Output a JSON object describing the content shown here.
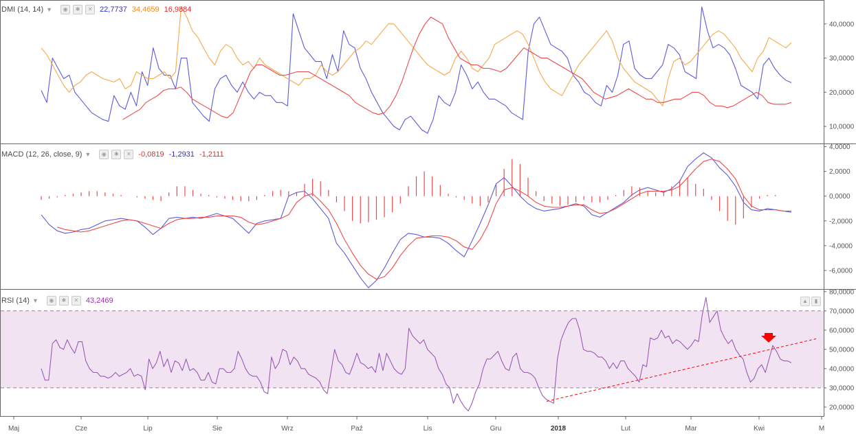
{
  "colors": {
    "blue": "#5b5bdc",
    "orange": "#f6a84a",
    "red": "#ef4848",
    "purple": "#9a5ab8",
    "rsi_band": "#f1e3f1",
    "grid": "#d8d8d8",
    "arrow": "#ff0000"
  },
  "x_axis": {
    "months": [
      "Maj",
      "Cze",
      "Lip",
      "Sie",
      "Wrz",
      "Paź",
      "Lis",
      "Gru",
      "2018",
      "Lut",
      "Mar",
      "Kwi",
      "M"
    ]
  },
  "panes": {
    "dmi": {
      "title": "DMI (14, 14)",
      "values": {
        "plus": "22,7737",
        "minus": "34,4659",
        "adx": "16,9884"
      },
      "y_ticks": [
        "40,0000",
        "30,0000",
        "20,0000",
        "10,0000"
      ]
    },
    "macd": {
      "title": "MACD (12, 26, close, 9)",
      "values": {
        "hist": "-0,0819",
        "macd": "-1,2931",
        "signal": "-1,2111"
      },
      "y_ticks": [
        "4,0000",
        "2,0000",
        "0,0000",
        "-2,0000",
        "-4,0000",
        "-6,0000"
      ]
    },
    "rsi": {
      "title": "RSI (14)",
      "values": {
        "rsi": "43,2469"
      },
      "y_ticks": [
        "80,0000",
        "70,0000",
        "60,0000",
        "50,0000",
        "40,0000",
        "30,0000",
        "20,0000"
      ]
    }
  },
  "chart_data": [
    {
      "type": "line",
      "pane": "DMI",
      "title": "DMI (14, 14)",
      "ylim": [
        5,
        47
      ],
      "series": [
        {
          "color": "blue",
          "values": [
            20.5,
            17,
            30,
            27,
            24,
            25,
            20,
            18,
            16,
            14,
            13,
            12,
            11.5,
            19,
            16,
            15,
            20,
            16,
            26,
            22,
            33,
            27,
            25,
            25,
            21,
            30,
            30,
            17,
            15,
            13,
            11.5,
            21,
            24,
            25,
            22,
            20,
            23,
            20,
            18,
            20,
            19,
            19,
            17,
            17,
            16,
            43,
            38,
            33,
            31,
            29,
            29,
            24,
            31,
            26,
            38,
            34,
            33,
            27,
            24,
            20,
            17,
            14,
            12,
            10,
            9,
            12,
            13,
            11,
            9,
            8,
            12,
            19,
            17,
            16,
            20,
            28,
            25,
            21,
            23,
            20,
            18,
            18,
            17,
            16,
            14,
            13,
            12,
            32,
            40,
            42,
            38,
            34,
            33,
            32,
            30,
            25,
            23,
            20,
            19,
            17,
            16,
            22,
            20,
            25,
            34,
            35,
            27,
            25,
            24,
            24,
            26,
            28,
            34,
            33,
            31,
            26,
            25,
            24,
            45,
            38,
            33,
            34,
            33,
            31,
            27,
            22,
            21,
            20,
            18,
            28,
            30,
            27,
            25,
            23.5,
            22.8
          ]
        },
        {
          "color": "orange",
          "values": [
            33,
            31,
            28,
            25,
            22,
            20,
            22,
            23,
            25,
            26,
            25,
            24,
            23.5,
            23,
            24,
            21,
            22,
            26,
            25,
            24,
            24,
            25,
            26,
            24,
            26,
            45,
            42,
            38,
            36,
            33,
            30,
            28,
            32,
            34,
            33,
            30,
            28,
            29,
            27,
            30,
            28,
            27,
            26,
            25,
            24,
            23,
            22,
            24,
            24,
            25,
            28,
            26,
            25,
            26,
            28,
            30,
            32,
            33,
            35,
            34,
            36,
            38,
            40,
            40,
            38,
            36,
            34,
            32,
            30,
            28,
            27,
            26,
            25,
            26,
            30,
            32,
            30,
            27,
            26,
            28,
            30,
            34,
            35,
            36,
            37,
            38,
            37,
            34,
            30,
            26,
            23,
            21,
            20,
            19,
            22,
            25,
            28,
            30,
            32,
            34,
            36,
            38,
            35,
            30,
            27,
            25,
            23,
            22,
            21,
            20,
            18,
            16,
            24,
            29,
            30,
            28,
            29,
            31,
            33,
            35,
            37,
            38,
            37,
            35,
            33,
            30,
            28,
            26,
            30,
            32,
            36,
            35,
            34,
            33,
            34.5
          ]
        },
        {
          "color": "red",
          "values": [
            null,
            null,
            null,
            null,
            null,
            null,
            null,
            null,
            null,
            null,
            null,
            null,
            null,
            null,
            12,
            13,
            14,
            15,
            17,
            18,
            19,
            20.5,
            21,
            21,
            21.5,
            20,
            18,
            17,
            16,
            15,
            14,
            13,
            12.5,
            14,
            18,
            22,
            26,
            28,
            28,
            27,
            26,
            25,
            25,
            25.5,
            26,
            26,
            26,
            25,
            24,
            23,
            22,
            21,
            20,
            19,
            17,
            16,
            15,
            14,
            13.5,
            14,
            16,
            19,
            23,
            28,
            33,
            37,
            40,
            42,
            41,
            40,
            36,
            33,
            30,
            29,
            28,
            28,
            27,
            27,
            26.5,
            26,
            27,
            29,
            31,
            33,
            32,
            31,
            30,
            30,
            29,
            28,
            27,
            26,
            25,
            24,
            22,
            20,
            19,
            18,
            18.5,
            19,
            20,
            21,
            20,
            19,
            18,
            18,
            17,
            17,
            17.5,
            18,
            18,
            19,
            20,
            20,
            19,
            17,
            16,
            16,
            15.5,
            16,
            17,
            18,
            19,
            20,
            19,
            17,
            16.5,
            16.5,
            16.5,
            17
          ]
        }
      ]
    },
    {
      "type": "line",
      "pane": "MACD",
      "title": "MACD (12, 26, close, 9)",
      "ylim": [
        -7.5,
        4.2
      ],
      "series": [
        {
          "color": "blue",
          "values": [
            -1.5,
            -2.3,
            -2.8,
            -3.0,
            -2.9,
            -2.7,
            -2.6,
            -2.3,
            -2.0,
            -1.9,
            -1.8,
            -1.9,
            -2.0,
            -2.5,
            -3.1,
            -2.6,
            -1.8,
            -1.7,
            -1.8,
            -1.7,
            -1.8,
            -1.6,
            -1.4,
            -1.6,
            -1.8,
            -2.4,
            -3.0,
            -2.2,
            -2.0,
            -1.9,
            -1.8,
            0.0,
            0.3,
            0.4,
            -0.2,
            -1.0,
            -1.8,
            -3.8,
            -4.6,
            -5.6,
            -6.6,
            -7.4,
            -6.8,
            -5.8,
            -4.6,
            -3.5,
            -3.0,
            -3.1,
            -3.3,
            -3.3,
            -3.4,
            -3.8,
            -4.4,
            -4.9,
            -3.6,
            -2.2,
            -0.7,
            1.0,
            1.5,
            0.8,
            0.0,
            -0.6,
            -1.0,
            -1.2,
            -1.1,
            -1.0,
            -0.8,
            -0.6,
            -0.8,
            -1.5,
            -1.7,
            -1.3,
            -0.9,
            -0.5,
            0.1,
            0.5,
            0.7,
            0.5,
            0.3,
            0.6,
            1.2,
            2.4,
            3.0,
            3.5,
            3.1,
            2.3,
            1.7,
            0.8,
            -0.5,
            -1.1,
            -1.2,
            -1.0,
            -1.1,
            -1.2,
            -1.3
          ]
        },
        {
          "color": "red",
          "values": [
            null,
            null,
            -2.5,
            -2.7,
            -2.8,
            -2.9,
            -2.8,
            -2.6,
            -2.4,
            -2.2,
            -2.0,
            -1.9,
            -2.0,
            -2.2,
            -2.4,
            -2.6,
            -2.2,
            -1.9,
            -1.8,
            -1.8,
            -1.7,
            -1.7,
            -1.6,
            -1.6,
            -1.6,
            -1.7,
            -2.1,
            -2.3,
            -2.2,
            -2.0,
            -1.8,
            -1.5,
            -0.5,
            0.0,
            0.2,
            -0.4,
            -1.1,
            -2.2,
            -3.5,
            -4.6,
            -5.6,
            -6.3,
            -6.7,
            -6.5,
            -5.8,
            -4.8,
            -4.0,
            -3.4,
            -3.3,
            -3.2,
            -3.2,
            -3.3,
            -3.6,
            -4.1,
            -4.3,
            -3.5,
            -2.3,
            -0.6,
            0.5,
            0.7,
            0.4,
            0.0,
            -0.5,
            -0.8,
            -0.9,
            -0.9,
            -0.8,
            -0.7,
            -0.7,
            -1.1,
            -1.4,
            -1.3,
            -1.0,
            -0.6,
            -0.2,
            0.2,
            0.4,
            0.4,
            0.4,
            0.5,
            0.8,
            1.5,
            2.2,
            2.8,
            3.0,
            2.8,
            2.2,
            1.4,
            0.0,
            -0.8,
            -1.1,
            -1.1,
            -1.1,
            -1.2,
            -1.2
          ]
        },
        {
          "color": "red",
          "style": "histogram",
          "values": [
            -0.3,
            -0.2,
            -0.1,
            0.1,
            0.2,
            0.3,
            0.4,
            0.4,
            0.3,
            0.2,
            0.1,
            0.0,
            -0.1,
            -0.2,
            -0.3,
            -0.4,
            0.3,
            0.8,
            0.8,
            0.5,
            0.2,
            0.1,
            -0.1,
            -0.2,
            -0.3,
            -0.4,
            -0.4,
            -0.3,
            0.1,
            0.4,
            0.5,
            0.4,
            0.3,
            1.0,
            1.4,
            1.2,
            0.5,
            -0.5,
            -1.2,
            -2.0,
            -2.2,
            -2.1,
            -1.9,
            -1.7,
            -1.3,
            -0.6,
            0.8,
            1.6,
            2.0,
            1.6,
            0.9,
            0.2,
            -0.1,
            -0.3,
            -0.6,
            -0.8,
            -0.5,
            1.0,
            2.2,
            3.0,
            2.6,
            1.5,
            0.4,
            -0.4,
            -0.6,
            -0.8,
            -0.7,
            -0.5,
            -0.3,
            -0.5,
            -0.5,
            -0.3,
            0.1,
            0.5,
            0.8,
            0.7,
            0.4,
            0.3,
            0.4,
            0.8,
            1.3,
            1.5,
            1.0,
            0.6,
            -0.3,
            -1.2,
            -2.0,
            -2.3,
            -1.8,
            -0.9,
            -0.2,
            0.1,
            0.1,
            0.0,
            0.0
          ]
        }
      ]
    },
    {
      "type": "line",
      "pane": "RSI",
      "title": "RSI (14)",
      "ylim": [
        15,
        81
      ],
      "band": [
        30,
        70
      ],
      "series": [
        {
          "color": "purple",
          "values": [
            40,
            34,
            34,
            53,
            55,
            51,
            50,
            55,
            51,
            48,
            54,
            54,
            44,
            40,
            38,
            38,
            36,
            36,
            35,
            36,
            38,
            36,
            37,
            38,
            40,
            36,
            37,
            36,
            29,
            45,
            40,
            43,
            49,
            41,
            45,
            38,
            44,
            43,
            39,
            45,
            39,
            40,
            38,
            34,
            34,
            38,
            33,
            32,
            40,
            40,
            38,
            38,
            40,
            49,
            45,
            40,
            37,
            36,
            36,
            33,
            28,
            27,
            46,
            40,
            43,
            50,
            49,
            42,
            46,
            44,
            40,
            40,
            37,
            36,
            35,
            33,
            29,
            27,
            38,
            50,
            44,
            42,
            38,
            37,
            42,
            48,
            43,
            42,
            40,
            41,
            38,
            48,
            39,
            48,
            44,
            40,
            38,
            37,
            40,
            61,
            57,
            55,
            53,
            55,
            50,
            48,
            46,
            40,
            37,
            32,
            30,
            22,
            27,
            23,
            20,
            18,
            22,
            28,
            32,
            40,
            45,
            45,
            47,
            49,
            44,
            40,
            39,
            46,
            48,
            40,
            38,
            38,
            37,
            35,
            30,
            26,
            24,
            23,
            22,
            45,
            55,
            60,
            64,
            66,
            66,
            60,
            50,
            49,
            49,
            48,
            46,
            46,
            44,
            40,
            43,
            40,
            44,
            44,
            40,
            38,
            36,
            33,
            42,
            41,
            56,
            55,
            56,
            60,
            56,
            57,
            53,
            55,
            54,
            52,
            50,
            52,
            55,
            54,
            68,
            77,
            64,
            67,
            70,
            60,
            56,
            53,
            55,
            50,
            47,
            45,
            38,
            33,
            35,
            40,
            42,
            38,
            45,
            52,
            49,
            45,
            44,
            44,
            43
          ]
        }
      ]
    }
  ]
}
